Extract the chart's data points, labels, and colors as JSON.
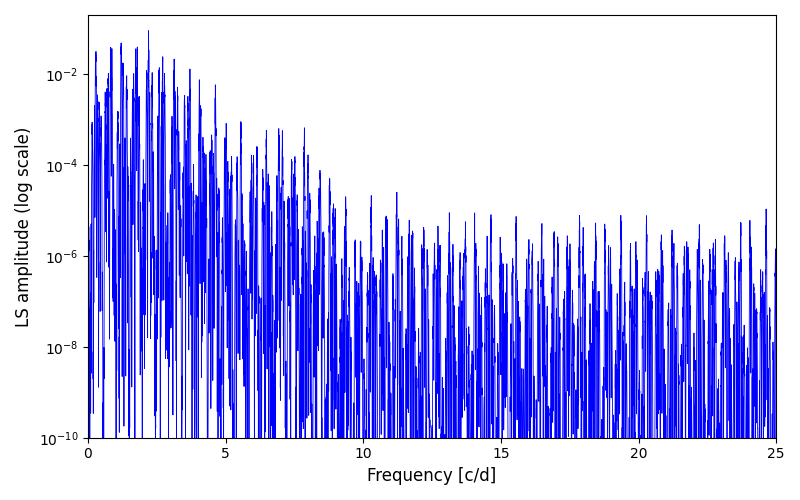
{
  "line_color": "#0000ff",
  "line_width": 0.6,
  "xlabel": "Frequency [c/d]",
  "ylabel": "LS amplitude (log scale)",
  "xlim": [
    0,
    25
  ],
  "ylim": [
    1e-10,
    0.2
  ],
  "xticks": [
    0,
    5,
    10,
    15,
    20,
    25
  ],
  "figsize": [
    8.0,
    5.0
  ],
  "dpi": 100,
  "background_color": "#ffffff",
  "seed": 12345,
  "num_points": 8000,
  "freq_max": 25.0
}
